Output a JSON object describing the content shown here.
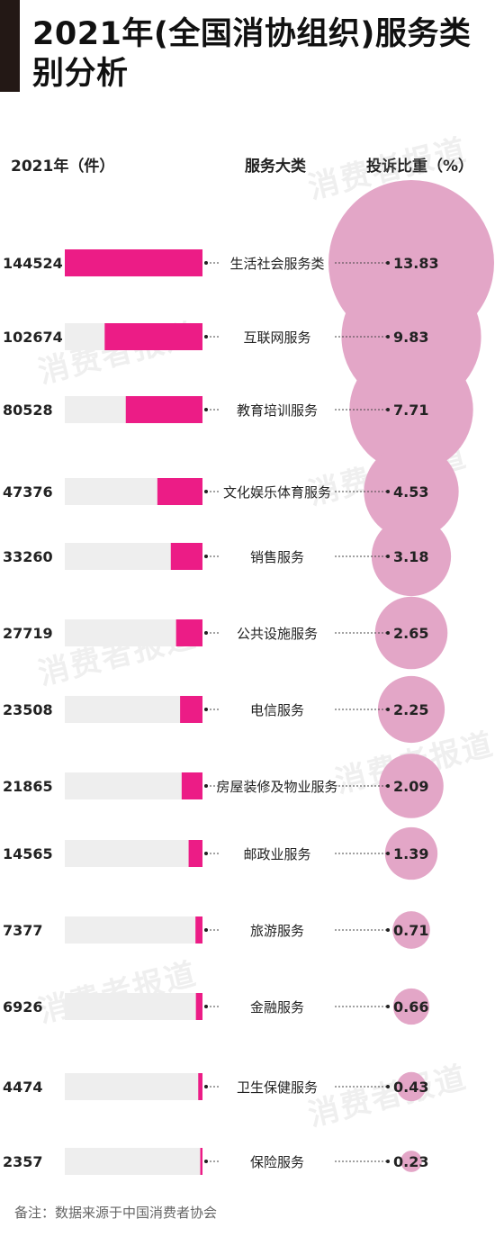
{
  "title": "2021年(全国消协组织)服务类别分析",
  "headers": {
    "count": "2021年（件）",
    "category": "服务大类",
    "ratio": "投诉比重（%）"
  },
  "watermark": "消费者报道",
  "note": "备注：数据来源于中国消费者协会",
  "colors": {
    "bar": "#ec1c86",
    "track": "#eeeeee",
    "bubble": "#e3a6c7",
    "title_bar": "#231815"
  },
  "chart_data": {
    "type": "bar",
    "title": "2021年(全国消协组织)服务类别分析",
    "categories": [
      "生活社会服务类",
      "互联网服务",
      "教育培训服务",
      "文化娱乐体育服务",
      "销售服务",
      "公共设施服务",
      "电信服务",
      "房屋装修及物业服务",
      "邮政业服务",
      "旅游服务",
      "金融服务",
      "卫生保健服务",
      "保险服务"
    ],
    "series": [
      {
        "name": "2021年（件）",
        "values": [
          144524,
          102674,
          80528,
          47376,
          33260,
          27719,
          23508,
          21865,
          14565,
          7377,
          6926,
          4474,
          2357
        ]
      },
      {
        "name": "投诉比重（%）",
        "values": [
          13.83,
          9.83,
          7.71,
          4.53,
          3.18,
          2.65,
          2.25,
          2.09,
          1.39,
          0.71,
          0.66,
          0.43,
          0.23
        ]
      }
    ],
    "count_labels": [
      "144524",
      "102674",
      "80528",
      "47376",
      "33260",
      "27719",
      "23508",
      "21865",
      "14565",
      "7377",
      "6926",
      "4474",
      "2357"
    ],
    "ratio_labels": [
      "13.83",
      "9.83",
      "7.71",
      "4.53",
      "3.18",
      "2.65",
      "2.25",
      "2.09",
      "1.39",
      "0.71",
      "0.66",
      "0.43",
      "0.23"
    ],
    "xlim": [
      0,
      144524
    ]
  }
}
